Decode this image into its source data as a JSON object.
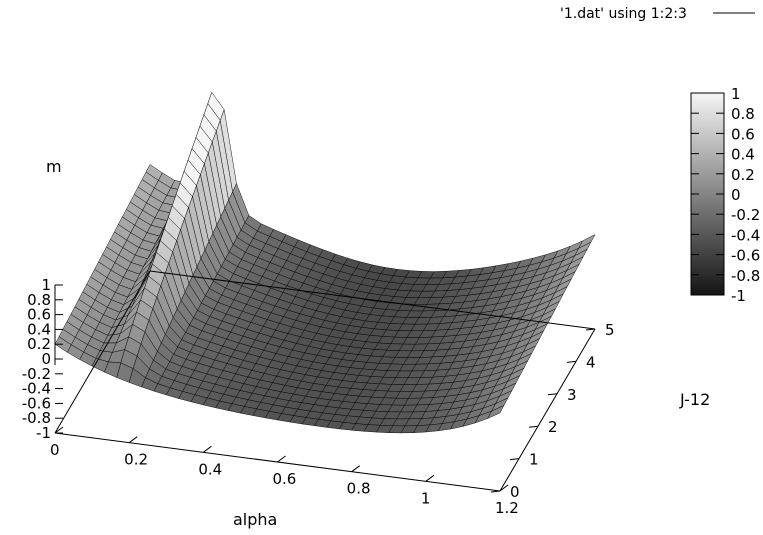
{
  "chart_data": {
    "type": "surface3d",
    "legend": "'1.dat' using 1:2:3",
    "xlabel": "alpha",
    "ylabel": "J-12",
    "zlabel": "m",
    "xlim": [
      0,
      1.2
    ],
    "ylim": [
      0,
      5
    ],
    "zlim": [
      -1,
      1
    ],
    "x_ticks": [
      "0",
      "0.2",
      "0.4",
      "0.6",
      "0.8",
      "1",
      "1.2"
    ],
    "y_ticks": [
      "0",
      "1",
      "2",
      "3",
      "4",
      "5"
    ],
    "z_ticks": [
      "1",
      "0.8",
      "0.6",
      "0.4",
      "0.2",
      "0",
      "-0.2",
      "-0.4",
      "-0.6",
      "-0.8",
      "-1"
    ],
    "colorbar_ticks": [
      "1",
      "0.8",
      "0.6",
      "0.4",
      "0.2",
      "0",
      "-0.2",
      "-0.4",
      "-0.6",
      "-0.8",
      "-1"
    ],
    "colormap": "gray",
    "surface_note_x_range": [
      0,
      1.2
    ],
    "surface_note_y_range": [
      0,
      5
    ]
  }
}
